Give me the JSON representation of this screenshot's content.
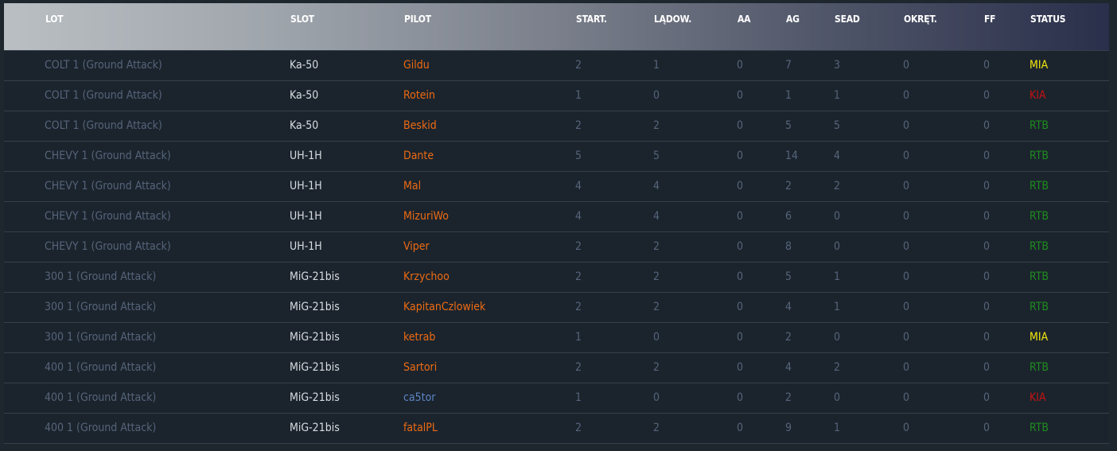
{
  "headers": [
    "LOT",
    "SLOT",
    "PILOT",
    "START.",
    "LĄDOW.",
    "AA",
    "AG",
    "SEAD",
    "OKRĘT.",
    "FF",
    "STATUS"
  ],
  "status_colors": {
    "MIA": "#f5e90f",
    "KIA": "#c81212",
    "RTB": "#1f8c1f"
  },
  "rows": [
    [
      "COLT 1 (Ground Attack)",
      "Ka-50",
      "Gildu",
      "2",
      "1",
      "0",
      "7",
      "3",
      "0",
      "0",
      "MIA"
    ],
    [
      "COLT 1 (Ground Attack)",
      "Ka-50",
      "Rotein",
      "1",
      "0",
      "0",
      "1",
      "1",
      "0",
      "0",
      "KIA"
    ],
    [
      "COLT 1 (Ground Attack)",
      "Ka-50",
      "Beskid",
      "2",
      "2",
      "0",
      "5",
      "5",
      "0",
      "0",
      "RTB"
    ],
    [
      "CHEVY 1 (Ground Attack)",
      "UH-1H",
      "Dante",
      "5",
      "5",
      "0",
      "14",
      "4",
      "0",
      "0",
      "RTB"
    ],
    [
      "CHEVY 1 (Ground Attack)",
      "UH-1H",
      "Mal",
      "4",
      "4",
      "0",
      "2",
      "2",
      "0",
      "0",
      "RTB"
    ],
    [
      "CHEVY 1 (Ground Attack)",
      "UH-1H",
      "MizuriWo",
      "4",
      "4",
      "0",
      "6",
      "0",
      "0",
      "0",
      "RTB"
    ],
    [
      "CHEVY 1 (Ground Attack)",
      "UH-1H",
      "Viper",
      "2",
      "2",
      "0",
      "8",
      "0",
      "0",
      "0",
      "RTB"
    ],
    [
      "300 1 (Ground Attack)",
      "MiG-21bis",
      "Krzychoo",
      "2",
      "2",
      "0",
      "5",
      "1",
      "0",
      "0",
      "RTB"
    ],
    [
      "300 1 (Ground Attack)",
      "MiG-21bis",
      "KapitanCzlowiek",
      "2",
      "2",
      "0",
      "4",
      "1",
      "0",
      "0",
      "RTB"
    ],
    [
      "300 1 (Ground Attack)",
      "MiG-21bis",
      "ketrab",
      "1",
      "0",
      "0",
      "2",
      "0",
      "0",
      "0",
      "MIA"
    ],
    [
      "400 1 (Ground Attack)",
      "MiG-21bis",
      "Sartori",
      "2",
      "2",
      "0",
      "4",
      "2",
      "0",
      "0",
      "RTB"
    ],
    [
      "400 1 (Ground Attack)",
      "MiG-21bis",
      "ca5tor",
      "1",
      "0",
      "0",
      "2",
      "0",
      "0",
      "0",
      "KIA"
    ],
    [
      "400 1 (Ground Attack)",
      "MiG-21bis",
      "fatalPL",
      "2",
      "2",
      "0",
      "9",
      "1",
      "0",
      "0",
      "RTB"
    ]
  ],
  "highlighted_pilots": [
    "ca5tor"
  ]
}
